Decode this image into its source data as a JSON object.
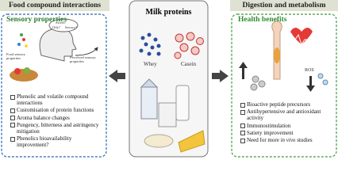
{
  "left": {
    "header": "Food compound interactions",
    "panel_title": "Sensory properties",
    "image_labels": [
      "Sweet?",
      "Oily?",
      "Savory?",
      "Food sensory properties",
      "Perceived sensory properties"
    ],
    "bullets": [
      "Phenolic and volatile compound interactions",
      "Customisation of protein functions",
      "Aroma balance changes",
      "Pungency, bitterness and astringency mitigation",
      "Phenolics bioavailability improvement?"
    ]
  },
  "center": {
    "title": "Milk proteins",
    "labels": [
      "Whey",
      "Casein"
    ]
  },
  "right": {
    "header": "Digestion and metabolism",
    "panel_title": "Health benefits",
    "image_labels": [
      "ROS"
    ],
    "bullets": [
      "Bioactive peptide precursors",
      "Antihypertensive and antioxidant activity",
      "Immunostimulation",
      "Satiety improvement"
    ],
    "last_bullet": [
      "Need for more ",
      "in vivo",
      " studies"
    ]
  }
}
